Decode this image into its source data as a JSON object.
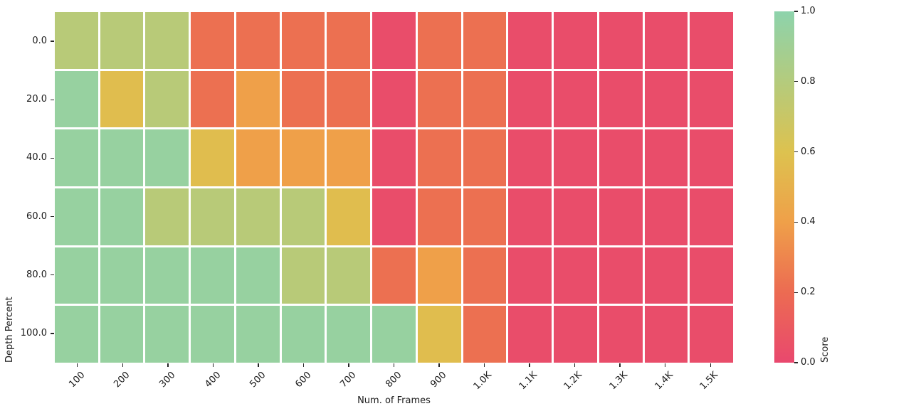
{
  "chart_data": {
    "type": "heatmap",
    "title": "",
    "xlabel": "Num. of Frames",
    "ylabel": "Depth Percent",
    "x_categories": [
      "100",
      "200",
      "300",
      "400",
      "500",
      "600",
      "700",
      "800",
      "900",
      "1.0K",
      "1.1K",
      "1.2K",
      "1.3K",
      "1.4K",
      "1.5K"
    ],
    "y_categories": [
      "0.0",
      "20.0",
      "40.0",
      "60.0",
      "80.0",
      "100.0"
    ],
    "values": [
      [
        0.78,
        0.78,
        0.78,
        0.22,
        0.22,
        0.22,
        0.22,
        0.03,
        0.22,
        0.22,
        0.03,
        0.03,
        0.03,
        0.03,
        0.03
      ],
      [
        0.95,
        0.57,
        0.78,
        0.22,
        0.4,
        0.22,
        0.22,
        0.03,
        0.22,
        0.22,
        0.03,
        0.03,
        0.03,
        0.03,
        0.03
      ],
      [
        0.95,
        0.95,
        0.95,
        0.57,
        0.4,
        0.4,
        0.4,
        0.03,
        0.22,
        0.22,
        0.03,
        0.03,
        0.03,
        0.03,
        0.03
      ],
      [
        0.95,
        0.95,
        0.78,
        0.78,
        0.78,
        0.78,
        0.57,
        0.03,
        0.22,
        0.22,
        0.03,
        0.03,
        0.03,
        0.03,
        0.03
      ],
      [
        0.95,
        0.95,
        0.95,
        0.95,
        0.95,
        0.78,
        0.78,
        0.22,
        0.4,
        0.22,
        0.03,
        0.03,
        0.03,
        0.03,
        0.03
      ],
      [
        0.95,
        0.95,
        0.95,
        0.95,
        0.95,
        0.95,
        0.95,
        0.95,
        0.57,
        0.22,
        0.03,
        0.03,
        0.03,
        0.03,
        0.03
      ]
    ],
    "value_range": [
      0,
      1
    ],
    "colorbar": {
      "label": "Score",
      "ticks_top_to_bottom": [
        "1.0",
        "0.8",
        "0.6",
        "0.4",
        "0.2",
        "0.0"
      ],
      "position": "right"
    },
    "colormap_stops": [
      {
        "t": 0.0,
        "color": "#e9486e"
      },
      {
        "t": 0.2,
        "color": "#ec6b52"
      },
      {
        "t": 0.4,
        "color": "#efa049"
      },
      {
        "t": 0.6,
        "color": "#ddc24f"
      },
      {
        "t": 0.8,
        "color": "#b4cb7d"
      },
      {
        "t": 1.0,
        "color": "#8dd3ac"
      }
    ],
    "cell_gap_color": "#ffffff",
    "grid": "white-gaps-between-cells",
    "x_tick_rotation_deg": 45,
    "legend_position": "colorbar-right"
  }
}
